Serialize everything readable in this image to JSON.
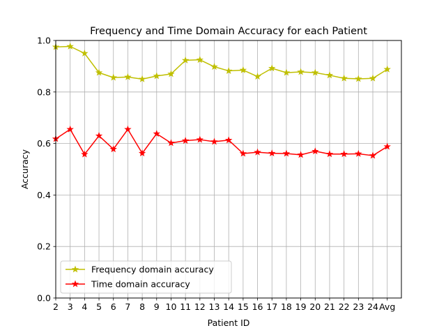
{
  "chart_data": {
    "type": "line",
    "title": "Frequency and Time Domain Accuracy for each Patient",
    "xlabel": "Patient ID",
    "ylabel": "Accuracy",
    "categories": [
      "2",
      "3",
      "4",
      "5",
      "6",
      "7",
      "8",
      "9",
      "10",
      "11",
      "12",
      "13",
      "14",
      "15",
      "16",
      "17",
      "18",
      "19",
      "20",
      "21",
      "22",
      "23",
      "24",
      "Avg"
    ],
    "ylim": [
      0,
      1.0
    ],
    "yticks": [
      "0.0",
      "0.2",
      "0.4",
      "0.6",
      "0.8",
      "1.0"
    ],
    "grid": "on",
    "legend_position": "lower-left",
    "series": [
      {
        "name": "Frequency domain accuracy",
        "color": "#bfbf00",
        "marker": "star",
        "values": [
          0.975,
          0.977,
          0.95,
          0.875,
          0.856,
          0.858,
          0.85,
          0.862,
          0.87,
          0.923,
          0.925,
          0.898,
          0.882,
          0.885,
          0.86,
          0.892,
          0.875,
          0.878,
          0.875,
          0.865,
          0.853,
          0.851,
          0.853,
          0.888
        ]
      },
      {
        "name": "Time domain accuracy",
        "color": "#ff0000",
        "marker": "star",
        "values": [
          0.618,
          0.655,
          0.558,
          0.63,
          0.578,
          0.655,
          0.562,
          0.638,
          0.602,
          0.611,
          0.615,
          0.607,
          0.613,
          0.561,
          0.566,
          0.562,
          0.561,
          0.556,
          0.57,
          0.559,
          0.559,
          0.56,
          0.553,
          0.588
        ]
      }
    ]
  }
}
